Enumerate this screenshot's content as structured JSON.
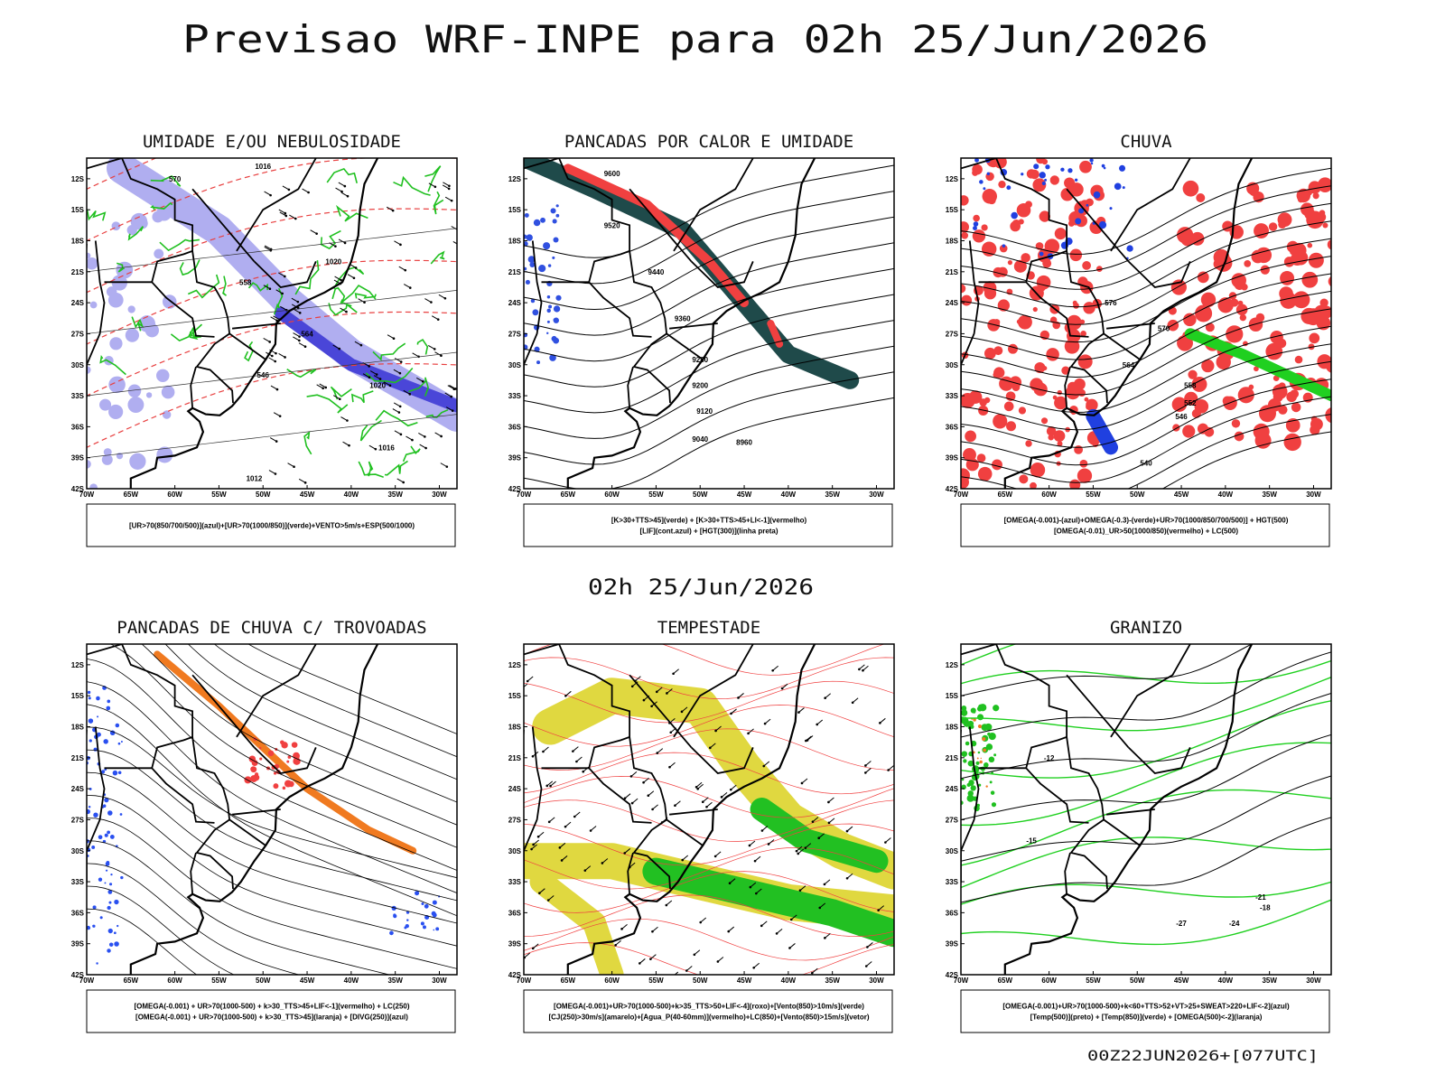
{
  "title": "Previsao WRF-INPE  para 02h 25/Jun/2026",
  "subtitle": "02h 25/Jun/2026",
  "footer": "00Z22JUN2026+[077UTC]",
  "axes": {
    "lat_labels": [
      "12S",
      "15S",
      "18S",
      "21S",
      "24S",
      "27S",
      "30S",
      "33S",
      "36S",
      "39S",
      "42S"
    ],
    "lon_labels": [
      "70W",
      "65W",
      "60W",
      "55W",
      "50W",
      "45W",
      "40W",
      "35W",
      "30W"
    ]
  },
  "panels": [
    {
      "title": "UMIDADE E/OU NEBULOSIDADE",
      "legend": [
        "[UR>70(850/700/500)](azul)+[UR>70(1000/850)](verde)+VENTO>5m/s+ESP(500/1000)"
      ],
      "contour_labels": [
        "570",
        "1016",
        "1020",
        "558",
        "564",
        "546",
        "1020",
        "1016",
        "1012"
      ]
    },
    {
      "title": "PANCADAS POR CALOR E UMIDADE",
      "legend": [
        "[K>30+TTS>45](verde) + [K>30+TTS>45+LI<-1](vermelho)",
        "[LIF](cont.azul) + [HGT(300)](linha preta)"
      ],
      "contour_labels": [
        "9600",
        "9520",
        "9440",
        "9360",
        "9280",
        "9200",
        "9120",
        "9040",
        "8960"
      ]
    },
    {
      "title": "CHUVA",
      "legend": [
        "[OMEGA(-0.001)-(azul)+OMEGA(-0.3)-(verde)+UR>70(1000/850/700/500)] + HGT(500)",
        "[OMEGA(-0.01)_UR>50(1000/850)(vermelho) + LC(500)"
      ],
      "contour_labels": [
        "576",
        "570",
        "564",
        "558",
        "552",
        "546",
        "540"
      ]
    },
    {
      "title": "PANCADAS DE CHUVA C/ TROVOADAS",
      "legend": [
        "[OMEGA(-0.001) + UR>70(1000-500) + k>30_TTS>45+LIF<-1](vermelho) + LC(250)",
        "[OMEGA(-0.001) + UR>70(1000-500) + k>30_TTS>45](laranja) + [DIVG(250)](azul)"
      ]
    },
    {
      "title": "TEMPESTADE",
      "legend": [
        "[OMEGA(-0.001)+UR>70(1000-500)+k>35_TTS>50+LIF<-4](roxo)+[Vento(850)>10m/s](verde)",
        "[CJ(250)>30m/s](amarelo)+[Agua_P(40-60mm)](vermelho)+LC(850)+[Vento(850)>15m/s](vetor)"
      ]
    },
    {
      "title": "GRANIZO",
      "legend": [
        "[OMEGA(-0.001)+UR>70(1000-500)+k<60+TTS>52+VT>25+SWEAT>220+LIF<-2](azul)",
        "[Temp(500)](preto) + [Temp(850)](verde) + [OMEGA(500)<-2](laranja)"
      ],
      "contour_labels": [
        "-12",
        "-15",
        "-18",
        "-21",
        "-24",
        "-27"
      ]
    }
  ]
}
